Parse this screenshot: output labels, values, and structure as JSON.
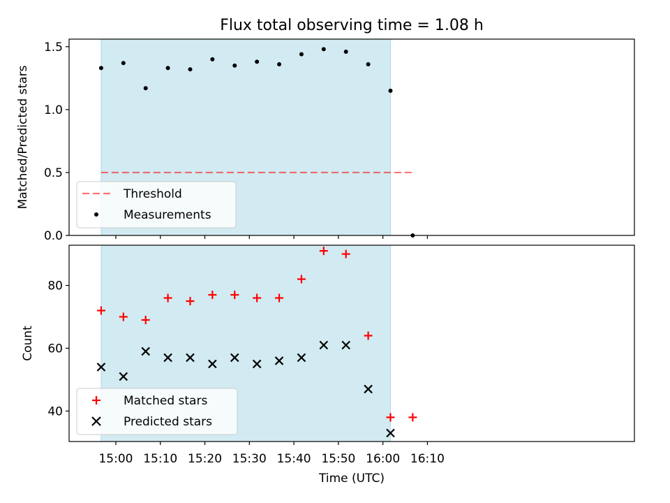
{
  "chart_data": {
    "title": "Flux total observing time = 1.08 h",
    "colors": {
      "shade": "#add8e6",
      "threshold": "#ff0000",
      "measurement": "#000000",
      "matched": "#ff0000",
      "predicted": "#000000"
    },
    "xlabel": "Time (UTC)",
    "x_range_minutes": [
      -10.5,
      116.5
    ],
    "x_ticks": [
      {
        "label": "15:00",
        "min": 0
      },
      {
        "label": "15:10",
        "min": 10
      },
      {
        "label": "15:20",
        "min": 20
      },
      {
        "label": "15:30",
        "min": 30
      },
      {
        "label": "15:40",
        "min": 40
      },
      {
        "label": "15:50",
        "min": 50
      },
      {
        "label": "16:00",
        "min": 60
      },
      {
        "label": "16:10",
        "min": 70
      }
    ],
    "shaded_interval_minutes": [
      -3.3,
      61.7
    ],
    "panels": [
      {
        "type": "scatter",
        "ylabel": "Matched/Predicted stars",
        "ylim": [
          0,
          1.56
        ],
        "y_ticks": [
          "0.0",
          "0.5",
          "1.0",
          "1.5"
        ],
        "y_tick_values": [
          0,
          0.5,
          1.0,
          1.5
        ],
        "threshold": {
          "value": 0.5,
          "x_range_minutes": [
            -3.3,
            66.7
          ]
        },
        "legend": [
          "Threshold",
          "Measurements"
        ],
        "series": [
          {
            "name": "Measurements",
            "x_minutes": [
              -3.3,
              1.7,
              6.7,
              11.7,
              16.7,
              21.7,
              26.7,
              31.7,
              36.7,
              41.7,
              46.7,
              51.7,
              56.7,
              61.7,
              66.7
            ],
            "values": [
              1.33,
              1.37,
              1.17,
              1.33,
              1.32,
              1.4,
              1.35,
              1.38,
              1.36,
              1.44,
              1.48,
              1.46,
              1.36,
              1.15,
              0.0
            ]
          }
        ]
      },
      {
        "type": "scatter",
        "ylabel": "Count",
        "ylim": [
          30.3,
          92.8
        ],
        "y_ticks": [
          "40",
          "60",
          "80"
        ],
        "y_tick_values": [
          40,
          60,
          80
        ],
        "legend": [
          "Matched stars",
          "Predicted stars"
        ],
        "series": [
          {
            "name": "Matched stars",
            "marker": "+",
            "x_minutes": [
              -3.3,
              1.7,
              6.7,
              11.7,
              16.7,
              21.7,
              26.7,
              31.7,
              36.7,
              41.7,
              46.7,
              51.7,
              56.7,
              61.7,
              66.7
            ],
            "values": [
              72,
              70,
              69,
              76,
              75,
              77,
              77,
              76,
              76,
              82,
              91,
              90,
              64,
              38,
              38
            ]
          },
          {
            "name": "Predicted stars",
            "marker": "x",
            "x_minutes": [
              -3.3,
              1.7,
              6.7,
              11.7,
              16.7,
              21.7,
              26.7,
              31.7,
              36.7,
              41.7,
              46.7,
              51.7,
              56.7,
              61.7
            ],
            "values": [
              54,
              51,
              59,
              57,
              57,
              55,
              57,
              55,
              56,
              57,
              61,
              61,
              47,
              33
            ]
          }
        ]
      }
    ]
  }
}
